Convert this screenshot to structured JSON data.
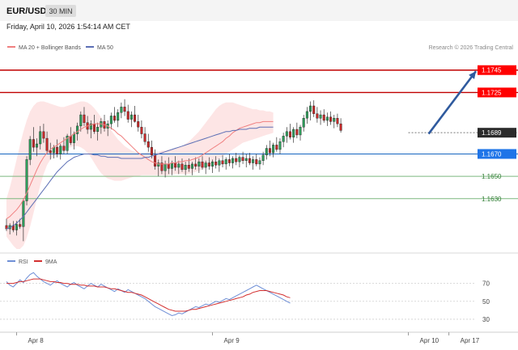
{
  "header": {
    "symbol": "EUR/USD",
    "interval": "30 MIN",
    "datetime": "Friday, April 10, 2026 1:54:14 AM CET"
  },
  "colors": {
    "bull": "#2e9e5b",
    "bear": "#c62828",
    "ma20": "#f08080",
    "bands": "#fde0e0",
    "ma50": "#5c6fb5",
    "resistance": "#c00000",
    "support": "#2e7d32",
    "pivot": "#1565c0",
    "rsi": "#6f8fd6",
    "rsi_ma": "#d32f2f",
    "arrow": "#2f5a9e"
  },
  "chart_data": [
    {
      "type": "candlestick",
      "title": "",
      "legend": [
        {
          "name": "MA 20 + Bollinger Bands",
          "color": "#f08080"
        },
        {
          "name": "MA 50",
          "color": "#5c6fb5"
        }
      ],
      "watermark": "Research © 2026 Trading Central",
      "ylim": [
        1.1585,
        1.176
      ],
      "xlim": [
        0,
        139
      ],
      "y_ticks": [
        1.163,
        1.165,
        1.167,
        1.1689,
        1.1725,
        1.1745
      ],
      "x_labels": [
        {
          "label": "Apr 8",
          "x": 3
        },
        {
          "label": "Apr 9",
          "x": 61
        },
        {
          "label": "Apr 10",
          "x": 119
        },
        {
          "label": "Apr 17",
          "x": 131
        }
      ],
      "levels": [
        {
          "label": "1.1745",
          "value": 1.1745,
          "kind": "resistance"
        },
        {
          "label": "1.1725",
          "value": 1.1725,
          "kind": "resistance"
        },
        {
          "label": "1.1689",
          "value": 1.1689,
          "kind": "last"
        },
        {
          "label": "1.1670",
          "value": 1.167,
          "kind": "pivot"
        },
        {
          "label": "1.1650",
          "value": 1.165,
          "kind": "support"
        },
        {
          "label": "1.1630",
          "value": 1.163,
          "kind": "support"
        }
      ],
      "forecast_arrow": {
        "from": [
          125,
          1.1688
        ],
        "to": [
          139,
          1.1744
        ]
      },
      "candles": [
        [
          1.1606,
          1.1612,
          1.1601,
          1.1603
        ],
        [
          1.1603,
          1.1608,
          1.1598,
          1.1606
        ],
        [
          1.1606,
          1.161,
          1.16,
          1.1602
        ],
        [
          1.1602,
          1.161,
          1.1597,
          1.1607
        ],
        [
          1.1607,
          1.1612,
          1.1603,
          1.1605
        ],
        [
          1.1605,
          1.163,
          1.1592,
          1.1628
        ],
        [
          1.1628,
          1.1668,
          1.1624,
          1.1665
        ],
        [
          1.1665,
          1.1686,
          1.166,
          1.1683
        ],
        [
          1.1683,
          1.1694,
          1.1672,
          1.1676
        ],
        [
          1.1676,
          1.1684,
          1.1668,
          1.1679
        ],
        [
          1.1679,
          1.1695,
          1.1674,
          1.169
        ],
        [
          1.169,
          1.1697,
          1.168,
          1.1684
        ],
        [
          1.1684,
          1.169,
          1.167,
          1.1673
        ],
        [
          1.1673,
          1.168,
          1.1665,
          1.1671
        ],
        [
          1.1671,
          1.1678,
          1.1666,
          1.1676
        ],
        [
          1.1676,
          1.1683,
          1.1667,
          1.167
        ],
        [
          1.167,
          1.1679,
          1.1665,
          1.1677
        ],
        [
          1.1677,
          1.1685,
          1.167,
          1.1673
        ],
        [
          1.1673,
          1.1688,
          1.167,
          1.1686
        ],
        [
          1.1686,
          1.1694,
          1.1678,
          1.168
        ],
        [
          1.168,
          1.169,
          1.1674,
          1.1688
        ],
        [
          1.1688,
          1.1698,
          1.1682,
          1.1695
        ],
        [
          1.1695,
          1.1708,
          1.169,
          1.1705
        ],
        [
          1.1705,
          1.1712,
          1.1695,
          1.1698
        ],
        [
          1.1698,
          1.1704,
          1.1688,
          1.1692
        ],
        [
          1.1692,
          1.17,
          1.1684,
          1.1697
        ],
        [
          1.1697,
          1.1705,
          1.1688,
          1.169
        ],
        [
          1.169,
          1.1698,
          1.1682,
          1.1694
        ],
        [
          1.1694,
          1.1702,
          1.1688,
          1.1699
        ],
        [
          1.1699,
          1.1705,
          1.169,
          1.1693
        ],
        [
          1.1693,
          1.17,
          1.1686,
          1.1697
        ],
        [
          1.1697,
          1.1707,
          1.1692,
          1.1704
        ],
        [
          1.1704,
          1.1712,
          1.1698,
          1.17
        ],
        [
          1.17,
          1.171,
          1.1694,
          1.1707
        ],
        [
          1.1707,
          1.1716,
          1.1702,
          1.1712
        ],
        [
          1.1712,
          1.1719,
          1.1704,
          1.1708
        ],
        [
          1.1708,
          1.1714,
          1.1698,
          1.1701
        ],
        [
          1.1701,
          1.1708,
          1.1694,
          1.1705
        ],
        [
          1.1705,
          1.1713,
          1.1698,
          1.1699
        ],
        [
          1.1699,
          1.1705,
          1.169,
          1.1694
        ],
        [
          1.1694,
          1.17,
          1.1684,
          1.1688
        ],
        [
          1.1688,
          1.1694,
          1.1678,
          1.1681
        ],
        [
          1.1681,
          1.1688,
          1.1672,
          1.1676
        ],
        [
          1.1676,
          1.1682,
          1.1666,
          1.1669
        ],
        [
          1.1669,
          1.1674,
          1.1656,
          1.1659
        ],
        [
          1.1659,
          1.1665,
          1.165,
          1.1662
        ],
        [
          1.1662,
          1.1668,
          1.1652,
          1.1655
        ],
        [
          1.1655,
          1.1664,
          1.1649,
          1.1661
        ],
        [
          1.1661,
          1.1667,
          1.1652,
          1.1657
        ],
        [
          1.1657,
          1.1664,
          1.1651,
          1.1662
        ],
        [
          1.1662,
          1.1668,
          1.1655,
          1.1658
        ],
        [
          1.1658,
          1.1664,
          1.1652,
          1.1661
        ],
        [
          1.1661,
          1.1666,
          1.1654,
          1.1656
        ],
        [
          1.1656,
          1.1663,
          1.1651,
          1.166
        ],
        [
          1.166,
          1.1666,
          1.1654,
          1.1657
        ],
        [
          1.1657,
          1.1663,
          1.1651,
          1.1661
        ],
        [
          1.1661,
          1.1667,
          1.1656,
          1.1659
        ],
        [
          1.1659,
          1.1666,
          1.1653,
          1.1663
        ],
        [
          1.1663,
          1.1668,
          1.1656,
          1.1658
        ],
        [
          1.1658,
          1.1664,
          1.1652,
          1.1662
        ],
        [
          1.1662,
          1.1667,
          1.1656,
          1.1659
        ],
        [
          1.1659,
          1.1665,
          1.1653,
          1.1663
        ],
        [
          1.1663,
          1.1668,
          1.1657,
          1.166
        ],
        [
          1.166,
          1.1666,
          1.1654,
          1.1664
        ],
        [
          1.1664,
          1.1669,
          1.1658,
          1.1661
        ],
        [
          1.1661,
          1.1667,
          1.1656,
          1.1665
        ],
        [
          1.1665,
          1.167,
          1.1659,
          1.1662
        ],
        [
          1.1662,
          1.1668,
          1.1657,
          1.1666
        ],
        [
          1.1666,
          1.1671,
          1.166,
          1.1663
        ],
        [
          1.1663,
          1.1669,
          1.1658,
          1.1667
        ],
        [
          1.1667,
          1.1672,
          1.1661,
          1.1664
        ],
        [
          1.1664,
          1.167,
          1.1658,
          1.1666
        ],
        [
          1.1666,
          1.1671,
          1.166,
          1.1662
        ],
        [
          1.1662,
          1.1668,
          1.1656,
          1.1665
        ],
        [
          1.1665,
          1.167,
          1.1659,
          1.1661
        ],
        [
          1.1661,
          1.1667,
          1.1656,
          1.1664
        ],
        [
          1.1664,
          1.1672,
          1.166,
          1.1669
        ],
        [
          1.1669,
          1.1678,
          1.1665,
          1.1675
        ],
        [
          1.1675,
          1.1682,
          1.1668,
          1.1671
        ],
        [
          1.1671,
          1.168,
          1.1667,
          1.1678
        ],
        [
          1.1678,
          1.1685,
          1.1672,
          1.1674
        ],
        [
          1.1674,
          1.1684,
          1.167,
          1.1681
        ],
        [
          1.1681,
          1.1689,
          1.1676,
          1.1686
        ],
        [
          1.1686,
          1.1694,
          1.168,
          1.169
        ],
        [
          1.169,
          1.1697,
          1.1683,
          1.1685
        ],
        [
          1.1685,
          1.1694,
          1.168,
          1.1692
        ],
        [
          1.1692,
          1.1698,
          1.1684,
          1.1687
        ],
        [
          1.1687,
          1.1696,
          1.1682,
          1.1694
        ],
        [
          1.1694,
          1.1705,
          1.169,
          1.1702
        ],
        [
          1.1702,
          1.1712,
          1.1697,
          1.1708
        ],
        [
          1.1708,
          1.1717,
          1.17,
          1.1713
        ],
        [
          1.1713,
          1.1718,
          1.1703,
          1.1706
        ],
        [
          1.1706,
          1.1712,
          1.1698,
          1.1702
        ],
        [
          1.1702,
          1.1709,
          1.1696,
          1.1705
        ],
        [
          1.1705,
          1.171,
          1.1698,
          1.17
        ],
        [
          1.17,
          1.1707,
          1.1695,
          1.1703
        ],
        [
          1.1703,
          1.1708,
          1.1696,
          1.1699
        ],
        [
          1.1699,
          1.1705,
          1.1693,
          1.1702
        ],
        [
          1.1702,
          1.1706,
          1.1694,
          1.1697
        ],
        [
          1.1697,
          1.1702,
          1.1689,
          1.1691
        ]
      ],
      "ma20": [
        1.1612,
        1.1614,
        1.1617,
        1.162,
        1.1624,
        1.1629,
        1.1635,
        1.1642,
        1.1649,
        1.1656,
        1.1662,
        1.1667,
        1.1671,
        1.1674,
        1.1676,
        1.1678,
        1.168,
        1.1682,
        1.1684,
        1.1686,
        1.1688,
        1.169,
        1.1692,
        1.1694,
        1.1695,
        1.1696,
        1.1697,
        1.1697,
        1.1697,
        1.1696,
        1.1695,
        1.1693,
        1.1691,
        1.1688,
        1.1686,
        1.1683,
        1.168,
        1.1677,
        1.1674,
        1.1671,
        1.1669,
        1.1667,
        1.1665,
        1.1663,
        1.1662,
        1.1661,
        1.1661,
        1.1661,
        1.1661,
        1.1662,
        1.1662,
        1.1663,
        1.1663,
        1.1664,
        1.1664,
        1.1665,
        1.1666,
        1.1667,
        1.1669,
        1.1671,
        1.1673,
        1.1675,
        1.1677,
        1.1679,
        1.1681,
        1.1684,
        1.1686,
        1.1689,
        1.1691,
        1.1693,
        1.1694,
        1.1695,
        1.1696,
        1.1697,
        1.1698,
        1.1698,
        1.1699,
        1.1699,
        1.1699,
        1.1699
      ],
      "bb_upper": [
        1.163,
        1.164,
        1.1652,
        1.1665,
        1.1678,
        1.169,
        1.17,
        1.1708,
        1.1713,
        1.1716,
        1.1717,
        1.1717,
        1.1716,
        1.1715,
        1.1714,
        1.1713,
        1.1712,
        1.1712,
        1.1713,
        1.1714,
        1.1715,
        1.1716,
        1.1717,
        1.1717,
        1.1716,
        1.1714,
        1.1711,
        1.1707,
        1.1703,
        1.1699,
        1.1695,
        1.1691,
        1.1687,
        1.1683,
        1.168,
        1.1677,
        1.1675,
        1.1673,
        1.1672,
        1.1671,
        1.1671,
        1.1671,
        1.1672,
        1.1672,
        1.1672,
        1.1672,
        1.1673,
        1.1673,
        1.1674,
        1.1674,
        1.1675,
        1.1676,
        1.1677,
        1.1679,
        1.1681,
        1.1684,
        1.1687,
        1.169,
        1.1694,
        1.1698,
        1.1702,
        1.1706,
        1.171,
        1.1713,
        1.1715,
        1.1716,
        1.1716,
        1.1716,
        1.1715,
        1.1714,
        1.1713,
        1.1712,
        1.1711,
        1.171,
        1.171,
        1.1709,
        1.1709,
        1.1708,
        1.1708,
        1.1707
      ],
      "bb_lower": [
        1.1596,
        1.1592,
        1.1588,
        1.1585,
        1.1585,
        1.1588,
        1.1595,
        1.1605,
        1.1617,
        1.163,
        1.1642,
        1.1652,
        1.166,
        1.1665,
        1.1668,
        1.1671,
        1.1673,
        1.1674,
        1.1675,
        1.1676,
        1.1677,
        1.1677,
        1.1676,
        1.1674,
        1.1671,
        1.1667,
        1.1662,
        1.1657,
        1.1653,
        1.165,
        1.1648,
        1.1647,
        1.1646,
        1.1646,
        1.1646,
        1.1647,
        1.1648,
        1.1649,
        1.165,
        1.165,
        1.1651,
        1.1651,
        1.1651,
        1.1651,
        1.1651,
        1.1651,
        1.1651,
        1.1651,
        1.1651,
        1.1652,
        1.1652,
        1.1652,
        1.1652,
        1.1652,
        1.1652,
        1.1653,
        1.1654,
        1.1655,
        1.1656,
        1.1658,
        1.166,
        1.1662,
        1.1664,
        1.1666,
        1.1668,
        1.167,
        1.1672,
        1.1674,
        1.1676,
        1.1678,
        1.168,
        1.1681,
        1.1682,
        1.1683,
        1.1684,
        1.1685,
        1.1686,
        1.1687,
        1.1688,
        1.1689
      ],
      "ma50": [
        1.1603,
        1.1604,
        1.1606,
        1.1608,
        1.1611,
        1.1614,
        1.1618,
        1.1622,
        1.1626,
        1.163,
        1.1634,
        1.1638,
        1.1642,
        1.1646,
        1.165,
        1.1654,
        1.1657,
        1.166,
        1.1663,
        1.1665,
        1.1667,
        1.1668,
        1.1669,
        1.167,
        1.167,
        1.167,
        1.1669,
        1.1669,
        1.1668,
        1.1668,
        1.1667,
        1.1667,
        1.1667,
        1.1667,
        1.1666,
        1.1666,
        1.1666,
        1.1666,
        1.1666,
        1.1666,
        1.1666,
        1.1667,
        1.1667,
        1.1668,
        1.1669,
        1.167,
        1.1671,
        1.1672,
        1.1673,
        1.1674,
        1.1675,
        1.1676,
        1.1677,
        1.1678,
        1.1679,
        1.168,
        1.1681,
        1.1682,
        1.1683,
        1.1684,
        1.1685,
        1.1686,
        1.1687,
        1.1688,
        1.1689,
        1.169,
        1.169,
        1.1691,
        1.1691,
        1.1692,
        1.1692,
        1.1692,
        1.1693,
        1.1693,
        1.1693,
        1.1694,
        1.1694,
        1.1694,
        1.1694,
        1.1694
      ]
    },
    {
      "type": "line",
      "title": "",
      "legend": [
        {
          "name": "RSI",
          "color": "#6f8fd6"
        },
        {
          "name": "9MA",
          "color": "#d32f2f"
        }
      ],
      "ylim": [
        20,
        85
      ],
      "y_ticks": [
        30,
        50,
        70
      ],
      "rsi": [
        72,
        68,
        66,
        70,
        74,
        71,
        76,
        80,
        82,
        78,
        75,
        72,
        70,
        68,
        71,
        73,
        70,
        68,
        66,
        69,
        71,
        68,
        66,
        64,
        67,
        70,
        68,
        66,
        69,
        67,
        65,
        63,
        61,
        64,
        62,
        60,
        63,
        61,
        59,
        57,
        55,
        53,
        50,
        47,
        44,
        42,
        40,
        38,
        36,
        34,
        35,
        37,
        36,
        38,
        40,
        42,
        44,
        43,
        45,
        47,
        46,
        48,
        50,
        49,
        51,
        53,
        52,
        54,
        56,
        58,
        60,
        62,
        64,
        66,
        68,
        66,
        64,
        62,
        60,
        58,
        56,
        54,
        52,
        50,
        48
      ],
      "rsi_ma": [
        70,
        70,
        70,
        71,
        72,
        72,
        73,
        74,
        75,
        75,
        75,
        74,
        73,
        72,
        72,
        71,
        71,
        70,
        70,
        69,
        69,
        69,
        68,
        68,
        67,
        67,
        67,
        66,
        66,
        66,
        65,
        64,
        64,
        63,
        62,
        61,
        60,
        60,
        59,
        58,
        57,
        55,
        53,
        51,
        49,
        47,
        45,
        43,
        41,
        40,
        39,
        39,
        39,
        39,
        40,
        41,
        41,
        42,
        43,
        44,
        45,
        46,
        47,
        48,
        49,
        50,
        51,
        52,
        53,
        54,
        55,
        57,
        58,
        60,
        61,
        62,
        62,
        62,
        61,
        60,
        59,
        58,
        57,
        55,
        54
      ]
    }
  ]
}
